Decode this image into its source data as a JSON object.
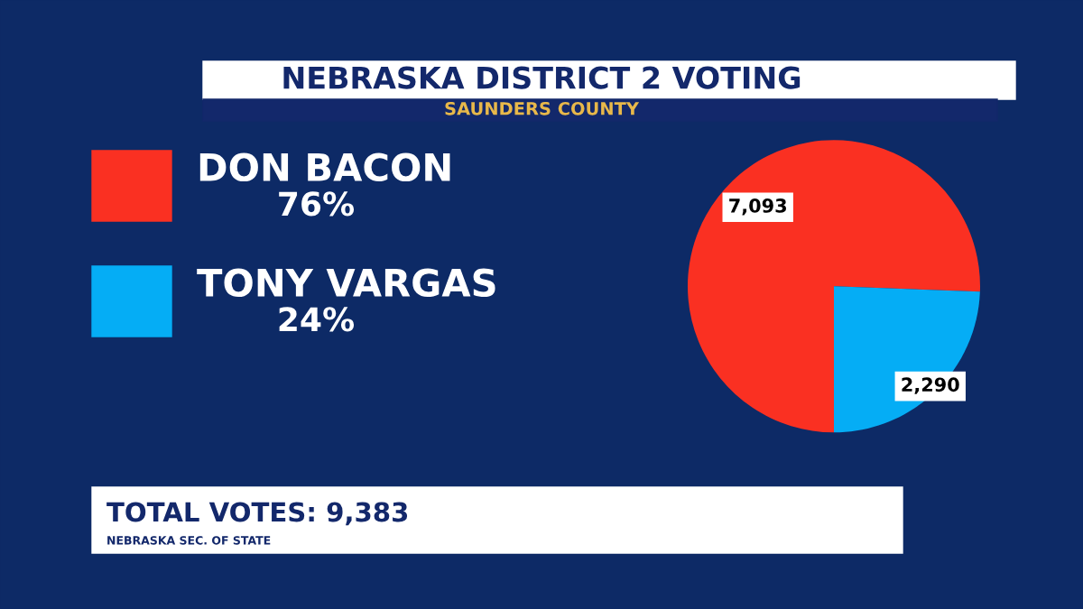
{
  "chart_data": {
    "type": "pie",
    "title": "NEBRASKA DISTRICT 2 VOTING",
    "subtitle": "SAUNDERS COUNTY",
    "categories": [
      "DON BACON",
      "TONY VARGAS"
    ],
    "values": [
      7093,
      2290
    ],
    "colors": [
      "#fa3022",
      "#05adf5"
    ],
    "value_labels": [
      "7,093",
      "2,290"
    ],
    "legend": "left",
    "annotations": [
      "76%",
      "24%",
      "TOTAL VOTES: 9,383",
      "NEBRASKA SEC. OF STATE"
    ]
  }
}
